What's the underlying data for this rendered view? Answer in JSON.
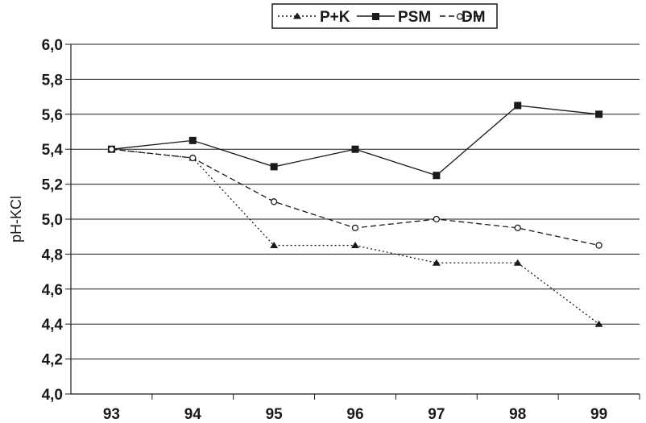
{
  "chart_data": {
    "type": "line",
    "title": "",
    "xlabel": "",
    "ylabel": "pH-KCl",
    "categories": [
      "93",
      "94",
      "95",
      "96",
      "97",
      "98",
      "99"
    ],
    "ylim": [
      4.0,
      6.0
    ],
    "yticks": [
      "4,0",
      "4,2",
      "4,4",
      "4,6",
      "4,8",
      "5,0",
      "5,2",
      "5,4",
      "5,6",
      "5,8",
      "6,0"
    ],
    "grid": "horizontal",
    "legend_position": "top",
    "series": [
      {
        "name": "P+K",
        "marker": "triangle",
        "line": "dotted",
        "values": [
          5.4,
          5.35,
          4.85,
          4.85,
          4.75,
          4.75,
          4.4
        ]
      },
      {
        "name": "PSM",
        "marker": "square",
        "line": "solid",
        "values": [
          5.4,
          5.45,
          5.3,
          5.4,
          5.25,
          5.65,
          5.6
        ]
      },
      {
        "name": "DM",
        "marker": "open-circle",
        "line": "dashed",
        "values": [
          5.4,
          5.35,
          5.1,
          4.95,
          5.0,
          4.95,
          4.85
        ]
      }
    ],
    "colors": {
      "line": "#1a1a1a",
      "grid": "#1a1a1a",
      "background": "#ffffff"
    }
  }
}
